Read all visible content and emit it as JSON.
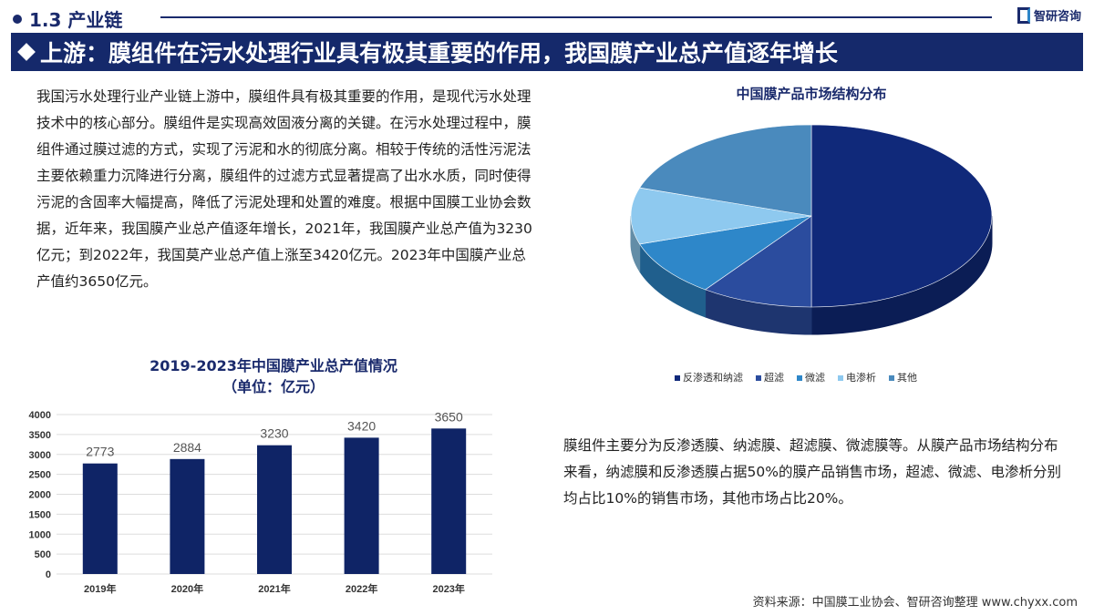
{
  "header": {
    "section": "1.3 产业链",
    "logo_text": "智研咨询",
    "banner": "上游：膜组件在污水处理行业具有极其重要的作用，我国膜产业总产值逐年增长"
  },
  "text": {
    "paragraph1": "我国污水处理行业产业链上游中，膜组件具有极其重要的作用，是现代污水处理技术中的核心部分。膜组件是实现高效固液分离的关键。在污水处理过程中，膜组件通过膜过滤的方式，实现了污泥和水的彻底分离。相较于传统的活性污泥法主要依赖重力沉降进行分离，膜组件的过滤方式显著提高了出水水质，同时使得污泥的含固率大幅提高，降低了污泥处理和处置的难度。根据中国膜工业协会数据，近年来，我国膜产业总产值逐年增长，2021年，我国膜产业总产值为3230亿元；到2022年，我国莫产业总产值上涨至3420亿元。2023年中国膜产业总产值约3650亿元。",
    "paragraph2": "膜组件主要分为反渗透膜、纳滤膜、超滤膜、微滤膜等。从膜产品市场结构分布来看，纳滤膜和反渗透膜占据50%的膜产品销售市场，超滤、微滤、电渗析分别均占比10%的销售市场，其他市场占比20%。",
    "source": "资料来源：中国膜工业协会、智研咨询整理  www.chyxx.com"
  },
  "chart_data": [
    {
      "type": "bar",
      "title": "2019-2023年中国膜产业总产值情况",
      "subtitle": "（单位：亿元）",
      "categories": [
        "2019年",
        "2020年",
        "2021年",
        "2022年",
        "2023年"
      ],
      "values": [
        2773,
        2884,
        3230,
        3420,
        3650
      ],
      "ylim": [
        0,
        4000
      ],
      "yticks": [
        0,
        500,
        1000,
        1500,
        2000,
        2500,
        3000,
        3500,
        4000
      ],
      "grid": true,
      "color": "#0f2466"
    },
    {
      "type": "pie",
      "title": "中国膜产品市场结构分布",
      "categories": [
        "反渗透和纳滤",
        "超滤",
        "微滤",
        "电渗析",
        "其他"
      ],
      "values": [
        50,
        10,
        10,
        10,
        20
      ],
      "colors": [
        "#10297a",
        "#2b4c9e",
        "#2e87c9",
        "#8ec9ef",
        "#4a8abd"
      ],
      "legend": "bottom"
    }
  ]
}
